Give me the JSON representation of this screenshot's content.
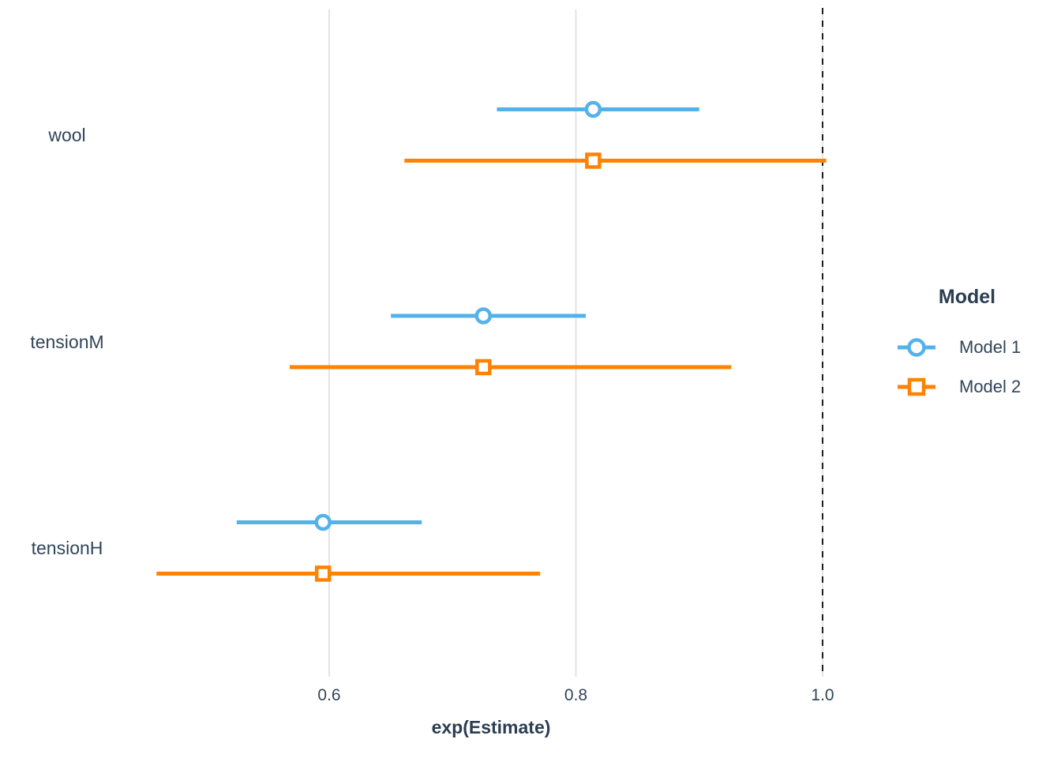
{
  "figure": {
    "background": "#ffffff",
    "text_color": "#31455a",
    "grid_color": "#e4e4e4",
    "reference_line_color": "#1e1e1e"
  },
  "chart_data": {
    "type": "scatter",
    "subtype": "forest-dot-whisker-plot",
    "title": "",
    "xlabel": "exp(Estimate)",
    "ylabel": "",
    "categories": [
      "wool",
      "tensionM",
      "tensionH"
    ],
    "x_ticks": [
      0.6,
      0.8,
      1.0
    ],
    "x_tick_labels": [
      "0.6",
      "0.8",
      "1.0"
    ],
    "xlim": [
      0.46,
      1.19
    ],
    "grid": "vertical-gridlines-only",
    "reference_line": {
      "x": 1.0,
      "style": "dashed"
    },
    "legend": {
      "title": "Model",
      "position": "right"
    },
    "series": [
      {
        "name": "Model 1",
        "marker": "circle",
        "color": "#54B2EB",
        "points": [
          {
            "category": "wool",
            "estimate": 0.814,
            "ci_low": 0.736,
            "ci_high": 0.9
          },
          {
            "category": "tensionM",
            "estimate": 0.725,
            "ci_low": 0.65,
            "ci_high": 0.808
          },
          {
            "category": "tensionH",
            "estimate": 0.595,
            "ci_low": 0.525,
            "ci_high": 0.675
          }
        ]
      },
      {
        "name": "Model 2",
        "marker": "square",
        "color": "#FE8204",
        "points": [
          {
            "category": "wool",
            "estimate": 0.814,
            "ci_low": 0.661,
            "ci_high": 1.003
          },
          {
            "category": "tensionM",
            "estimate": 0.725,
            "ci_low": 0.568,
            "ci_high": 0.926
          },
          {
            "category": "tensionH",
            "estimate": 0.595,
            "ci_low": 0.46,
            "ci_high": 0.771
          }
        ]
      }
    ]
  }
}
